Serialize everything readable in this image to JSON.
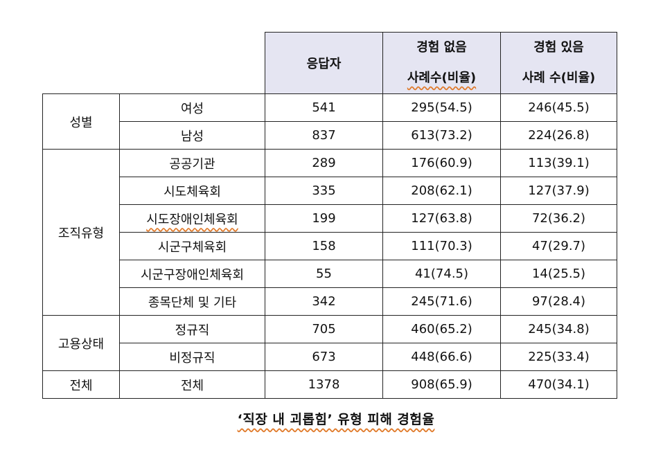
{
  "table": {
    "header": {
      "respondents": "응답자",
      "no_experience_line1": "경험 없음",
      "no_experience_line2": "사례수(비율)",
      "experience_line1": "경험 있음",
      "experience_line2": "사례 수(비율)"
    },
    "groups": [
      {
        "label": "성별",
        "rows": [
          {
            "category": "여성",
            "respondents": "541",
            "no_exp": "295(54.5)",
            "exp": "246(45.5)"
          },
          {
            "category": "남성",
            "respondents": "837",
            "no_exp": "613(73.2)",
            "exp": "224(26.8)"
          }
        ]
      },
      {
        "label": "조직유형",
        "rows": [
          {
            "category": "공공기관",
            "respondents": "289",
            "no_exp": "176(60.9)",
            "exp": "113(39.1)"
          },
          {
            "category": "시도체육회",
            "respondents": "335",
            "no_exp": "208(62.1)",
            "exp": "127(37.9)"
          },
          {
            "category": "시도장애인체육회",
            "respondents": "199",
            "no_exp": "127(63.8)",
            "exp": "72(36.2)"
          },
          {
            "category": "시군구체육회",
            "respondents": "158",
            "no_exp": "111(70.3)",
            "exp": "47(29.7)"
          },
          {
            "category": "시군구장애인체육회",
            "respondents": "55",
            "no_exp": "41(74.5)",
            "exp": "14(25.5)"
          },
          {
            "category": "종목단체 및 기타",
            "respondents": "342",
            "no_exp": "245(71.6)",
            "exp": "97(28.4)"
          }
        ]
      },
      {
        "label": "고용상태",
        "rows": [
          {
            "category": "정규직",
            "respondents": "705",
            "no_exp": "460(65.2)",
            "exp": "245(34.8)"
          },
          {
            "category": "비정규직",
            "respondents": "673",
            "no_exp": "448(66.6)",
            "exp": "225(33.4)"
          }
        ]
      },
      {
        "label": "전체",
        "rows": [
          {
            "category": "전체",
            "respondents": "1378",
            "no_exp": "908(65.9)",
            "exp": "470(34.1)"
          }
        ]
      }
    ]
  },
  "caption": "‘직장 내 괴롭힘’ 유형 피해 경험율",
  "colors": {
    "header_bg": "#e5e5f2",
    "spell_underline": "#e07a2a"
  }
}
